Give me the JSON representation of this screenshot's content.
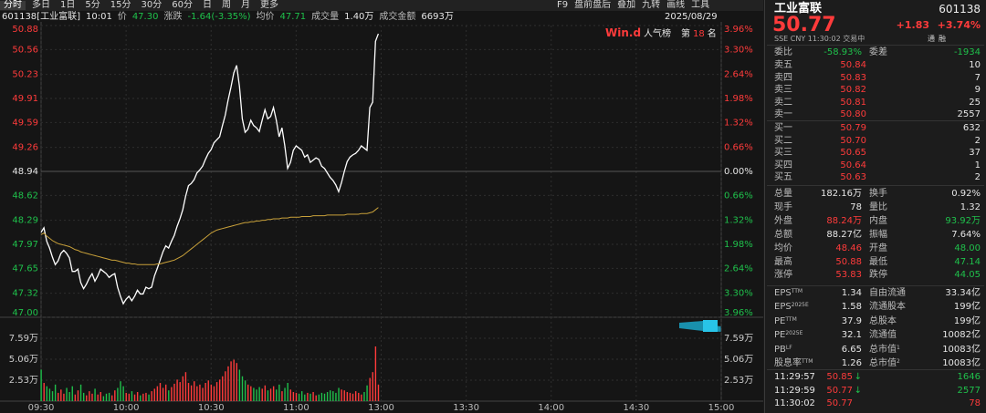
{
  "toolbar": {
    "tabs": [
      "分时",
      "多日",
      "1日",
      "5分",
      "15分",
      "30分",
      "60分",
      "日",
      "周",
      "月",
      "更多"
    ],
    "tools": [
      "F9",
      "盘前盘后",
      "叠加",
      "九转",
      "画线",
      "工具"
    ]
  },
  "info_bar": {
    "code_name": "601138[工业富联]",
    "time": "10:01",
    "items": [
      {
        "label": "价",
        "value": "47.30",
        "tone": "down"
      },
      {
        "label": "涨跌",
        "value": "-1.64(-3.35%)",
        "tone": "down"
      },
      {
        "label": "均价",
        "value": "47.71",
        "tone": "down"
      },
      {
        "label": "成交量",
        "value": "1.40万",
        "tone": "flat"
      },
      {
        "label": "成交金额",
        "value": "6693万",
        "tone": "flat"
      }
    ],
    "date": "2025/08/29"
  },
  "badge": {
    "logo": "Win.d",
    "text": "人气榜",
    "rank_prefix": "第",
    "rank": "18",
    "rank_suffix": "名"
  },
  "chart_data": [
    {
      "type": "line",
      "xlim": [
        0,
        240
      ],
      "ylim": [
        47,
        50.88
      ],
      "yticks": [
        50.88,
        50.56,
        50.23,
        49.91,
        49.59,
        49.26,
        48.94,
        48.62,
        48.29,
        47.97,
        47.65,
        47.32,
        {
          "value": 47,
          "label": "47.00"
        }
      ],
      "y2lim": [
        -3.96,
        3.96
      ],
      "y2ticks": [
        {
          "value": 3.96,
          "label": "3.96%"
        },
        {
          "value": 3.3,
          "label": "3.30%"
        },
        {
          "value": 2.64,
          "label": "2.64%"
        },
        {
          "value": 1.98,
          "label": "1.98%"
        },
        {
          "value": 1.32,
          "label": "1.32%"
        },
        {
          "value": 0.66,
          "label": "0.66%"
        },
        {
          "value": 0,
          "label": "0.00%"
        },
        {
          "value": -0.66,
          "label": "0.66%"
        },
        {
          "value": -1.32,
          "label": "1.32%"
        },
        {
          "value": -1.98,
          "label": "1.98%"
        },
        {
          "value": -2.64,
          "label": "2.64%"
        },
        {
          "value": -3.3,
          "label": "3.30%"
        },
        {
          "value": -3.96,
          "label": "3.96%"
        }
      ],
      "grid": true,
      "series": [
        {
          "color": "#ffffff",
          "values": [
            48.13,
            48.19,
            48.01,
            47.92,
            47.8,
            47.7,
            47.75,
            47.85,
            47.89,
            47.85,
            47.79,
            47.61,
            47.61,
            47.64,
            47.46,
            47.38,
            47.44,
            47.52,
            47.58,
            47.48,
            47.55,
            47.64,
            47.61,
            47.58,
            47.53,
            47.56,
            47.58,
            47.4,
            47.28,
            47.18,
            47.24,
            47.28,
            47.22,
            47.28,
            47.36,
            47.31,
            47.31,
            47.4,
            47.38,
            47.4,
            47.55,
            47.65,
            47.76,
            47.87,
            47.95,
            47.92,
            48.01,
            48.09,
            48.21,
            48.31,
            48.43,
            48.61,
            48.75,
            48.78,
            48.83,
            48.92,
            48.96,
            49.01,
            49.1,
            49.18,
            49.23,
            49.32,
            49.36,
            49.4,
            49.55,
            49.69,
            49.89,
            50.06,
            50.25,
            50.35,
            50.07,
            49.64,
            49.46,
            49.5,
            49.62,
            49.55,
            49.52,
            49.47,
            49.62,
            49.76,
            49.64,
            49.67,
            49.79,
            49.62,
            49.4,
            49.52,
            49.28,
            48.98,
            49.06,
            49.22,
            49.28,
            49.25,
            49.22,
            49.13,
            49.16,
            49.06,
            49.09,
            49.12,
            49.1,
            49.01,
            48.98,
            48.92,
            48.86,
            48.82,
            48.76,
            48.67,
            48.79,
            48.94,
            49.07,
            49.13,
            49.16,
            49.18,
            49.22,
            49.28,
            49.25,
            49.22,
            49.79,
            49.86,
            50.67,
            50.77
          ]
        },
        {
          "color": "#c9a13a",
          "values": [
            48.1,
            48.12,
            48.08,
            48.05,
            48.02,
            48.0,
            47.98,
            47.97,
            47.96,
            47.95,
            47.94,
            47.92,
            47.9,
            47.89,
            47.87,
            47.86,
            47.85,
            47.84,
            47.83,
            47.82,
            47.81,
            47.8,
            47.79,
            47.78,
            47.77,
            47.76,
            47.76,
            47.75,
            47.74,
            47.73,
            47.72,
            47.72,
            47.71,
            47.71,
            47.7,
            47.7,
            47.7,
            47.7,
            47.7,
            47.7,
            47.7,
            47.71,
            47.71,
            47.72,
            47.73,
            47.74,
            47.75,
            47.76,
            47.78,
            47.8,
            47.82,
            47.85,
            47.88,
            47.91,
            47.94,
            47.97,
            48.0,
            48.03,
            48.06,
            48.09,
            48.12,
            48.14,
            48.16,
            48.17,
            48.18,
            48.19,
            48.2,
            48.21,
            48.22,
            48.23,
            48.24,
            48.25,
            48.26,
            48.26,
            48.27,
            48.27,
            48.28,
            48.28,
            48.29,
            48.29,
            48.3,
            48.3,
            48.31,
            48.31,
            48.31,
            48.32,
            48.32,
            48.32,
            48.33,
            48.33,
            48.33,
            48.33,
            48.34,
            48.34,
            48.34,
            48.34,
            48.35,
            48.35,
            48.35,
            48.35,
            48.35,
            48.36,
            48.36,
            48.36,
            48.36,
            48.36,
            48.36,
            48.36,
            48.37,
            48.37,
            48.37,
            48.37,
            48.37,
            48.38,
            48.38,
            48.38,
            48.39,
            48.4,
            48.43,
            48.46
          ]
        }
      ]
    },
    {
      "type": "bar",
      "xlim": [
        0,
        240
      ],
      "xticks": [
        {
          "value": 0,
          "label": "09:30"
        },
        {
          "value": 30,
          "label": "10:00"
        },
        {
          "value": 60,
          "label": "10:30"
        },
        {
          "value": 90,
          "label": "11:00"
        },
        {
          "value": 120,
          "label": "13:00"
        },
        {
          "value": 150,
          "label": "13:30"
        },
        {
          "value": 180,
          "label": "14:00"
        },
        {
          "value": 210,
          "label": "14:30"
        },
        {
          "value": 240,
          "label": "15:00"
        }
      ],
      "ylim": [
        0,
        10.12
      ],
      "yticks": [
        {
          "value": 7.59,
          "label": "7.59万"
        },
        {
          "value": 5.06,
          "label": "5.06万"
        },
        {
          "value": 2.53,
          "label": "2.53万"
        }
      ],
      "up_color": "#ff3b3b",
      "down_color": "#1fc04b",
      "values": [
        3.8,
        2.2,
        1.8,
        1.5,
        1.2,
        2.0,
        1.0,
        1.4,
        0.9,
        1.6,
        1.1,
        1.8,
        0.8,
        1.3,
        2.0,
        1.0,
        0.7,
        1.2,
        0.9,
        1.5,
        0.8,
        1.1,
        0.6,
        0.9,
        1.0,
        0.7,
        1.3,
        1.6,
        2.4,
        1.8,
        1.0,
        0.9,
        1.2,
        0.8,
        1.1,
        0.7,
        0.9,
        1.0,
        0.8,
        1.2,
        1.5,
        1.8,
        2.2,
        1.6,
        2.0,
        1.3,
        1.7,
        2.1,
        2.6,
        2.3,
        3.0,
        3.5,
        2.2,
        1.9,
        2.4,
        1.8,
        2.0,
        1.6,
        2.2,
        2.5,
        2.0,
        1.8,
        2.3,
        2.6,
        3.0,
        3.6,
        4.2,
        4.8,
        5.0,
        4.6,
        3.8,
        3.0,
        2.5,
        2.0,
        1.8,
        1.6,
        1.4,
        1.7,
        1.5,
        1.9,
        1.3,
        1.5,
        1.8,
        1.4,
        2.0,
        1.2,
        1.6,
        2.2,
        1.4,
        1.1,
        1.0,
        0.9,
        1.2,
        0.8,
        1.0,
        0.9,
        1.1,
        0.7,
        0.8,
        1.0,
        0.9,
        1.1,
        1.3,
        1.2,
        1.0,
        1.6,
        1.4,
        1.3,
        1.1,
        1.0,
        0.9,
        1.2,
        1.0,
        0.8,
        1.1,
        1.9,
        2.8,
        3.5,
        6.6,
        2.0
      ]
    }
  ],
  "quote": {
    "name": "工业富联",
    "code": "601138",
    "price": "50.77",
    "change": "+1.83",
    "change_pct": "+3.74%",
    "meta": "SSE CNY 11:30:02 交易中",
    "flags": [
      "通",
      "融"
    ],
    "ratio": [
      {
        "label": "委比",
        "value": "-58.93%",
        "tone": "down"
      },
      {
        "label": "委差",
        "value": "-1934",
        "tone": "down"
      }
    ],
    "asks": [
      {
        "label": "卖五",
        "price": "50.84",
        "volume": "10"
      },
      {
        "label": "卖四",
        "price": "50.83",
        "volume": "7"
      },
      {
        "label": "卖三",
        "price": "50.82",
        "volume": "9"
      },
      {
        "label": "卖二",
        "price": "50.81",
        "volume": "25"
      },
      {
        "label": "卖一",
        "price": "50.80",
        "volume": "2557"
      }
    ],
    "bids": [
      {
        "label": "买一",
        "price": "50.79",
        "volume": "632"
      },
      {
        "label": "买二",
        "price": "50.70",
        "volume": "2"
      },
      {
        "label": "买三",
        "price": "50.65",
        "volume": "37"
      },
      {
        "label": "买四",
        "price": "50.64",
        "volume": "1"
      },
      {
        "label": "买五",
        "price": "50.63",
        "volume": "2"
      }
    ],
    "stats": [
      [
        {
          "label": "总量",
          "value": "182.16万",
          "tone": "flat"
        },
        {
          "label": "换手",
          "value": "0.92%",
          "tone": "flat"
        }
      ],
      [
        {
          "label": "现手",
          "value": "78",
          "tone": "flat"
        },
        {
          "label": "量比",
          "value": "1.32",
          "tone": "flat"
        }
      ],
      [
        {
          "label": "外盘",
          "value": "88.24万",
          "tone": "up"
        },
        {
          "label": "内盘",
          "value": "93.92万",
          "tone": "down"
        }
      ],
      [
        {
          "label": "总额",
          "value": "88.27亿",
          "tone": "flat"
        },
        {
          "label": "振幅",
          "value": "7.64%",
          "tone": "flat"
        }
      ],
      [
        {
          "label": "均价",
          "value": "48.46",
          "tone": "up"
        },
        {
          "label": "开盘",
          "value": "48.00",
          "tone": "down"
        }
      ],
      [
        {
          "label": "最高",
          "value": "50.88",
          "tone": "up"
        },
        {
          "label": "最低",
          "value": "47.14",
          "tone": "down"
        }
      ],
      [
        {
          "label": "涨停",
          "value": "53.83",
          "tone": "up"
        },
        {
          "label": "跌停",
          "value": "44.05",
          "tone": "down"
        }
      ]
    ],
    "fundamentals": [
      [
        {
          "label": "EPS",
          "sup": "TTM",
          "value": "1.34"
        },
        {
          "label": "自由流通",
          "value": "33.34亿"
        }
      ],
      [
        {
          "label": "EPS",
          "sup": "2025E",
          "value": "1.58"
        },
        {
          "label": "流通股本",
          "value": "199亿"
        }
      ],
      [
        {
          "label": "PE",
          "sup": "TTM",
          "value": "37.9"
        },
        {
          "label": "总股本",
          "value": "199亿"
        }
      ],
      [
        {
          "label": "PE",
          "sup": "2025E",
          "value": "32.1"
        },
        {
          "label": "流通值",
          "value": "10082亿"
        }
      ],
      [
        {
          "label": "PB",
          "sup": "LF",
          "value": "6.65"
        },
        {
          "label": "总市值",
          "sup": "1",
          "value": "10083亿"
        }
      ],
      [
        {
          "label": "股息率",
          "sup": "TTM",
          "value": "1.26"
        },
        {
          "label": "总市值",
          "sup": "2",
          "value": "10083亿"
        }
      ]
    ],
    "trades": [
      {
        "time": "11:29:57",
        "price": "50.85",
        "arrow": "↓",
        "volume": "1646",
        "tone": "down"
      },
      {
        "time": "11:29:59",
        "price": "50.77",
        "arrow": "↓",
        "volume": "2577",
        "tone": "down"
      },
      {
        "time": "11:30:02",
        "price": "50.77",
        "volume": "78",
        "tone": "up"
      }
    ]
  }
}
